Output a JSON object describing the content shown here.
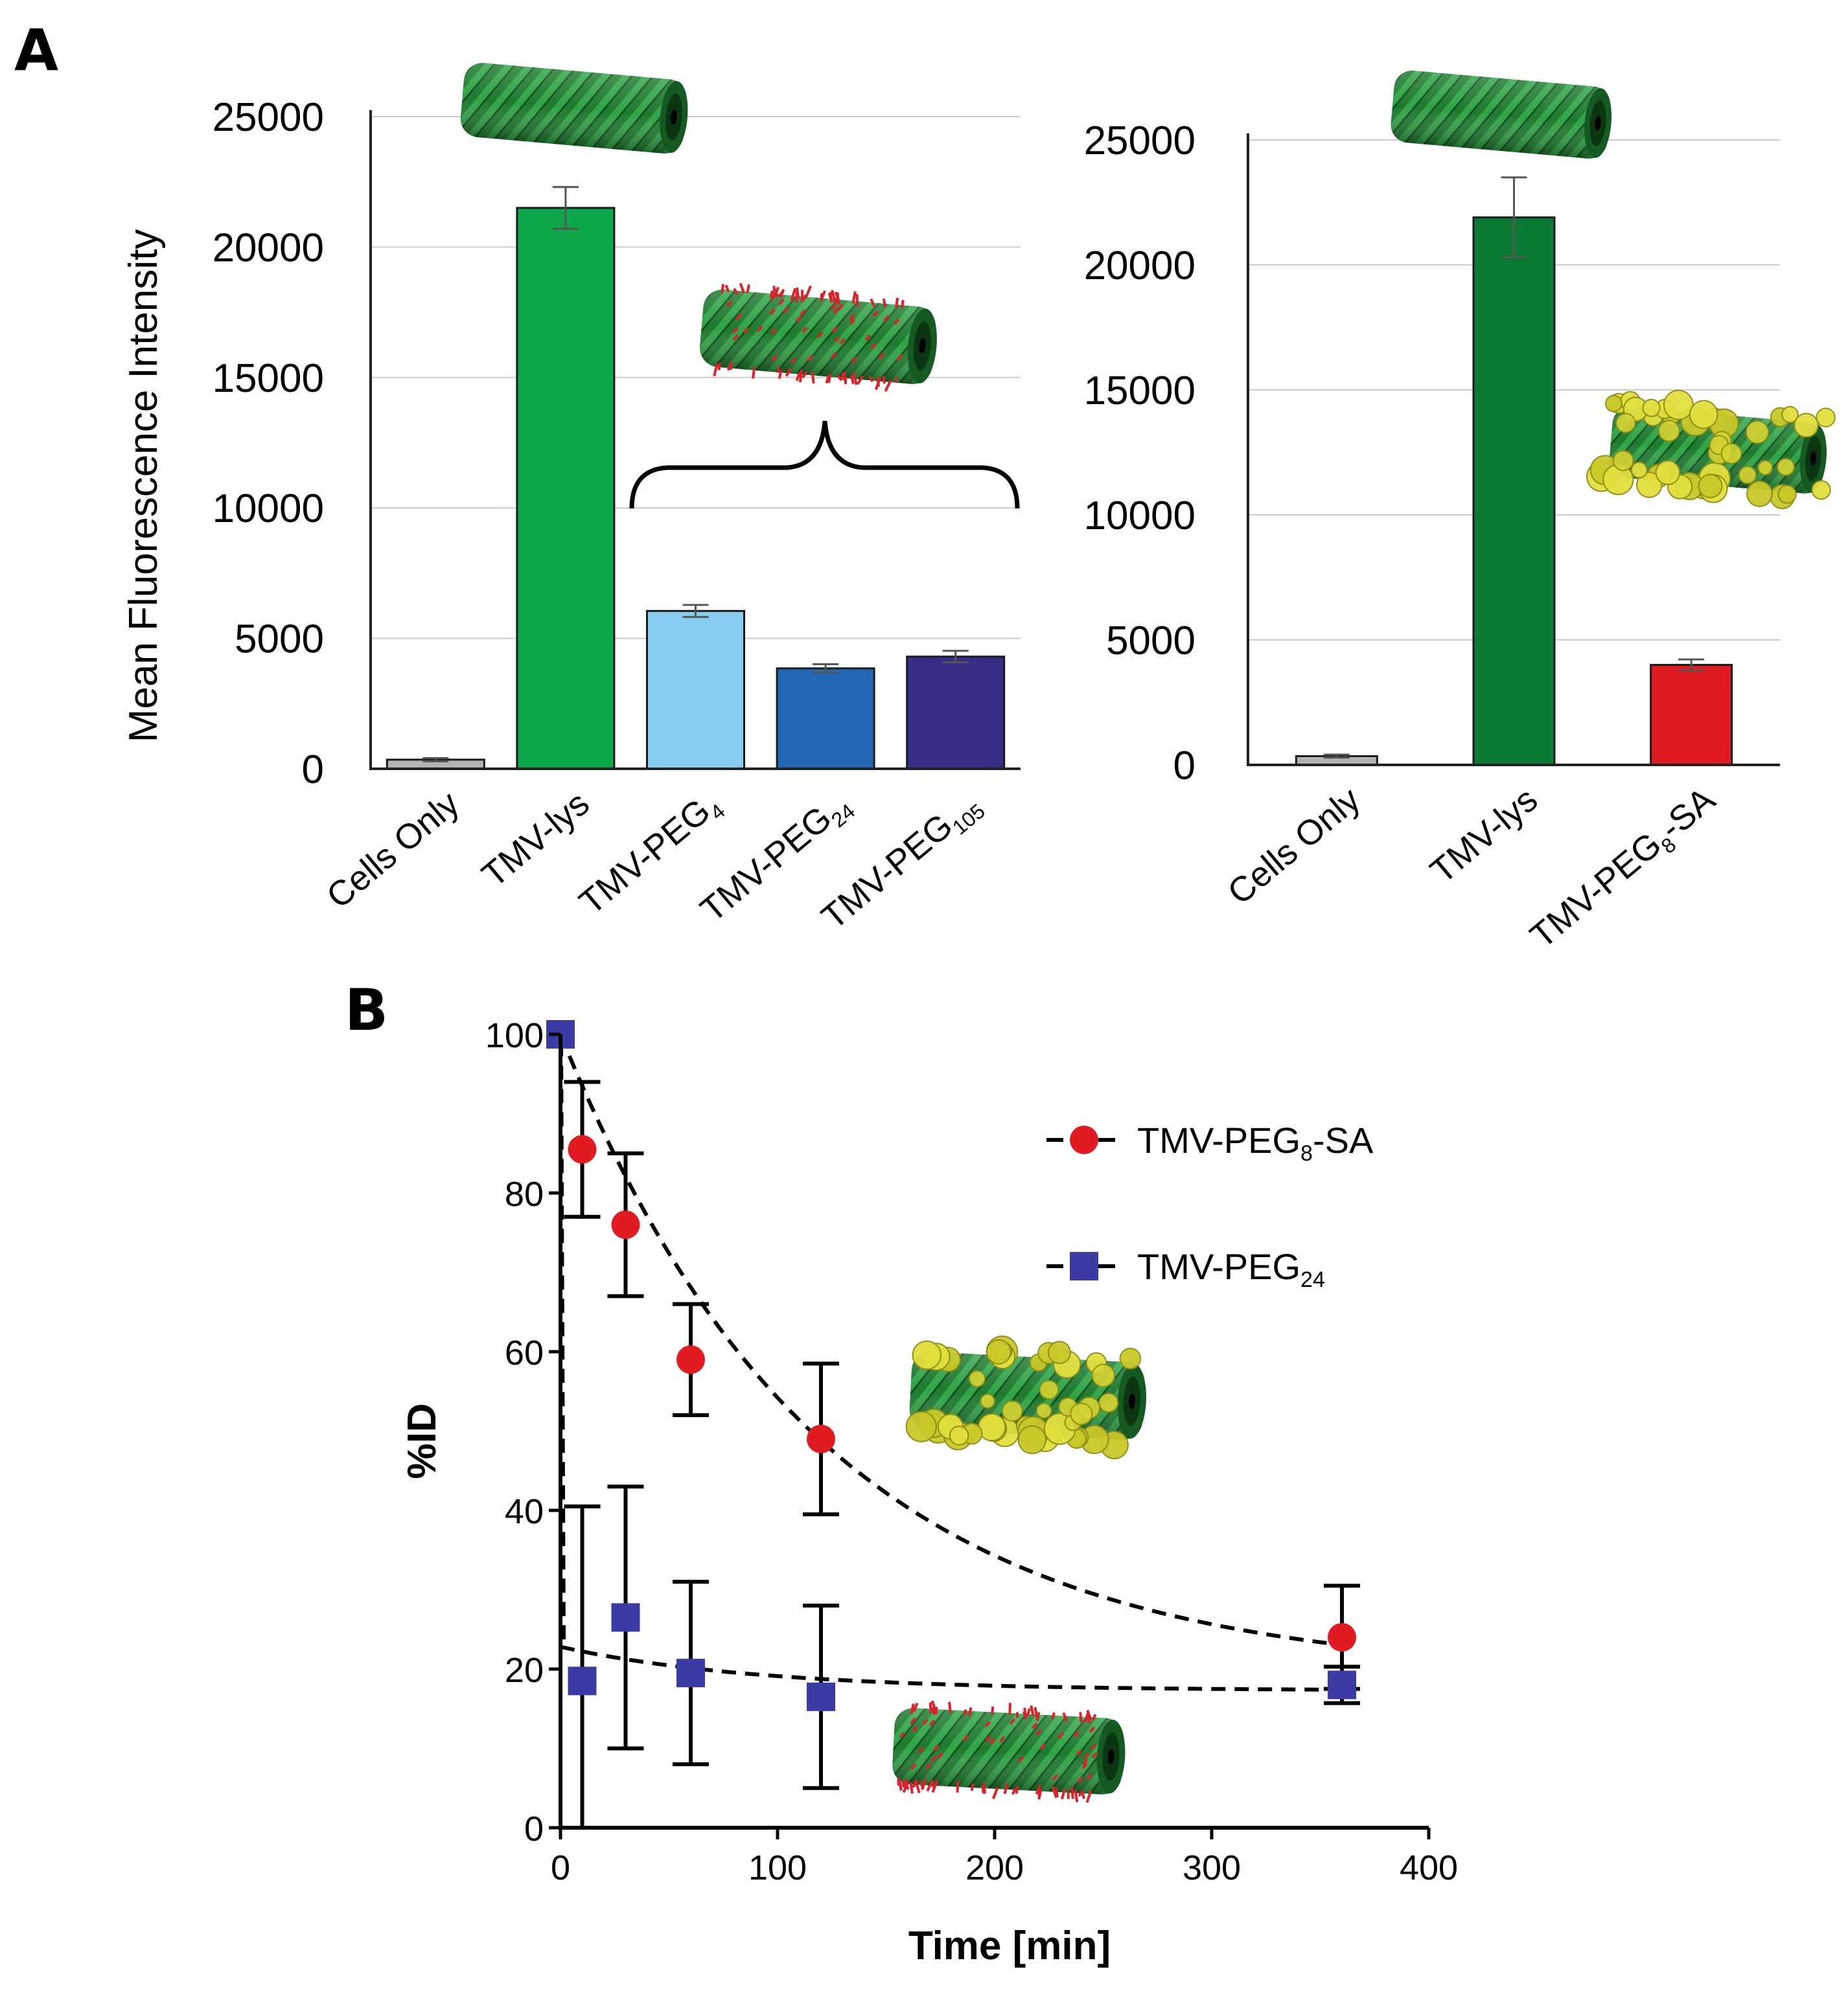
{
  "panels": {
    "a": "A",
    "b": "B"
  },
  "chart_data": [
    {
      "type": "bar",
      "panel": "A",
      "title": "",
      "ylabel": "Mean Fluorescence Intensity",
      "xlabel": "",
      "ylim": [
        0,
        25000
      ],
      "yticks": [
        "0",
        "5000",
        "10000",
        "15000",
        "20000",
        "25000"
      ],
      "grid": true,
      "categories": [
        {
          "base": "Cells Only",
          "sub": "",
          "suffix": ""
        },
        {
          "base": "TMV-lys",
          "sub": "",
          "suffix": ""
        },
        {
          "base": "TMV-PEG",
          "sub": "4",
          "suffix": ""
        },
        {
          "base": "TMV-PEG",
          "sub": "24",
          "suffix": ""
        },
        {
          "base": "TMV-PEG",
          "sub": "105",
          "suffix": ""
        }
      ],
      "values": [
        350,
        21500,
        6050,
        3850,
        4300
      ],
      "errors": [
        60,
        800,
        230,
        160,
        220
      ],
      "colors": [
        "#b3b3b3",
        "#0ca84a",
        "#86cdef",
        "#2268b5",
        "#352d86"
      ],
      "icons": [
        "tmv-rod-icon",
        "pegylated-tmv-rod-icon"
      ]
    },
    {
      "type": "bar",
      "panel": "A",
      "title": "",
      "ylabel": "",
      "xlabel": "",
      "ylim": [
        0,
        25000
      ],
      "yticks": [
        "0",
        "5000",
        "10000",
        "15000",
        "20000",
        "25000"
      ],
      "grid": true,
      "categories": [
        {
          "base": "Cells Only",
          "sub": "",
          "suffix": ""
        },
        {
          "base": "TMV-lys",
          "sub": "",
          "suffix": ""
        },
        {
          "base": "TMV-PEG",
          "sub": "8",
          "suffix": "-SA"
        }
      ],
      "values": [
        350,
        21900,
        4000
      ],
      "errors": [
        60,
        1600,
        220
      ],
      "colors": [
        "#b3b3b3",
        "#0b7a35",
        "#e01b22"
      ],
      "icons": [
        "tmv-rod-icon",
        "serum-albumin-coated-tmv-icon"
      ]
    },
    {
      "type": "scatter",
      "panel": "B",
      "title": "",
      "xlabel": "Time [min]",
      "ylabel": "%ID",
      "xlim": [
        0,
        400
      ],
      "ylim": [
        0,
        100
      ],
      "xticks": [
        "0",
        "100",
        "200",
        "300",
        "400"
      ],
      "yticks": [
        "0",
        "20",
        "40",
        "60",
        "80",
        "100"
      ],
      "grid": false,
      "legend": "top-right",
      "series": [
        {
          "name": {
            "base": "TMV-PEG",
            "sub": "8",
            "suffix": "-SA"
          },
          "marker": "circle",
          "color": "#e01b22",
          "x": [
            0,
            10,
            30,
            60,
            120,
            360
          ],
          "y": [
            100,
            85.5,
            76,
            59,
            49,
            24
          ],
          "err": [
            0,
            8.5,
            9,
            7,
            9.5,
            6.5
          ],
          "fit": "dashed"
        },
        {
          "name": {
            "base": "TMV-PEG",
            "sub": "24",
            "suffix": ""
          },
          "marker": "square",
          "color": "#3b3ba6",
          "x": [
            0,
            10,
            30,
            60,
            120,
            360
          ],
          "y": [
            100,
            18.5,
            26.5,
            19.5,
            16.5,
            18
          ],
          "err": [
            0,
            22,
            16.5,
            11.5,
            11.5,
            2.3
          ],
          "fit": "dashed"
        }
      ],
      "icons": [
        "serum-albumin-coated-tmv-icon",
        "pegylated-tmv-rod-icon"
      ]
    }
  ]
}
